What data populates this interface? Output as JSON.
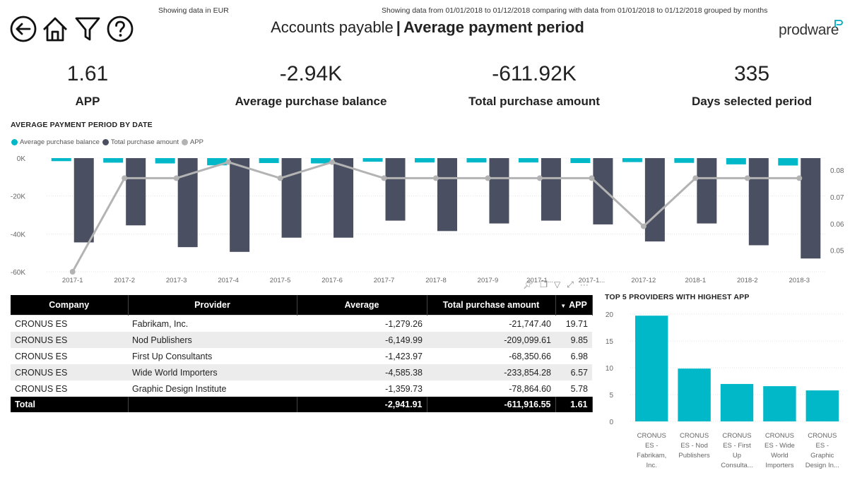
{
  "nav": {
    "back": "back-icon",
    "home": "home-icon",
    "filter": "filter-icon",
    "help": "help-icon"
  },
  "header": {
    "currency_info": "Showing data in EUR",
    "period_info": "Showing data from 01/01/2018 to 01/12/2018 comparing with data from 01/01/2018 to 01/12/2018 grouped by months",
    "title_main": "Accounts payable",
    "title_sep": "|",
    "title_sub": "Average payment period",
    "logo": "prodware"
  },
  "kpis": [
    {
      "value": "1.61",
      "label": "APP"
    },
    {
      "value": "-2.94K",
      "label": "Average purchase balance"
    },
    {
      "value": "-611.92K",
      "label": "Total purchase amount"
    },
    {
      "value": "335",
      "label": "Days selected period"
    }
  ],
  "colors": {
    "teal": "#00b8c8",
    "slate": "#4a5061",
    "grey_line": "#b3b3b3",
    "axis_text": "#666666"
  },
  "main_chart": {
    "title": "AVERAGE PAYMENT PERIOD BY DATE",
    "chart_data": {
      "type": "bar",
      "categories": [
        "2017-1",
        "2017-2",
        "2017-3",
        "2017-4",
        "2017-5",
        "2017-6",
        "2017-7",
        "2017-8",
        "2017-9",
        "2017-10",
        "2017-11",
        "2017-12",
        "2018-1",
        "2018-2",
        "2018-3"
      ],
      "tick_labels": [
        "2017-1",
        "2017-2",
        "2017-3",
        "2017-4",
        "2017-5",
        "2017-6",
        "2017-7",
        "2017-8",
        "2017-9",
        "2017-1...",
        "2017-1...",
        "2017-12",
        "2018-1",
        "2018-2",
        "2018-3"
      ],
      "series": [
        {
          "name": "Average purchase balance",
          "values": [
            -1600,
            -2400,
            -2800,
            -3800,
            -2600,
            -2800,
            -1900,
            -2300,
            -2300,
            -2300,
            -2600,
            -2100,
            -2500,
            -3300,
            -3900
          ],
          "axis": "left"
        },
        {
          "name": "Total purchase amount",
          "values": [
            -44500,
            -35500,
            -47000,
            -49500,
            -42000,
            -42000,
            -33000,
            -38500,
            -34500,
            -33000,
            -35000,
            -44000,
            -34500,
            -46000,
            -53000
          ],
          "axis": "left"
        },
        {
          "name": "APP",
          "values": [
            0.042,
            0.077,
            0.077,
            0.083,
            0.077,
            0.083,
            0.077,
            0.077,
            0.077,
            0.077,
            0.077,
            0.059,
            0.077,
            0.077,
            0.077
          ],
          "axis": "right",
          "type": "line"
        }
      ],
      "y_left_ticks": [
        0,
        -20000,
        -40000,
        -60000
      ],
      "y_left_tick_labels": [
        "0K",
        "-20K",
        "-40K",
        "-60K"
      ],
      "ylim_left": [
        -60000,
        0
      ],
      "y_right_ticks": [
        0.08,
        0.07,
        0.06,
        0.05
      ],
      "y_right_tick_labels": [
        "0.08",
        "0.07",
        "0.06",
        "0.05"
      ],
      "ylim_right": [
        0.042,
        0.0845
      ],
      "legend_position": "top-left",
      "grid": true
    }
  },
  "chart_toolbar": {
    "pin": "pin-icon",
    "copy": "copy-icon",
    "filter": "filter-small-icon",
    "focus": "focus-mode-icon",
    "more": "···"
  },
  "table": {
    "columns": [
      "Company",
      "Provider",
      "Average",
      "Total purchase amount",
      "APP"
    ],
    "sort_indicator": "▼",
    "rows": [
      {
        "company": "CRONUS ES",
        "provider": "Fabrikam, Inc.",
        "average": "-1,279.26",
        "total": "-21,747.40",
        "app": "19.71"
      },
      {
        "company": "CRONUS ES",
        "provider": "Nod Publishers",
        "average": "-6,149.99",
        "total": "-209,099.61",
        "app": "9.85"
      },
      {
        "company": "CRONUS ES",
        "provider": "First Up Consultants",
        "average": "-1,423.97",
        "total": "-68,350.66",
        "app": "6.98"
      },
      {
        "company": "CRONUS ES",
        "provider": "Wide World Importers",
        "average": "-4,585.38",
        "total": "-233,854.28",
        "app": "6.57"
      },
      {
        "company": "CRONUS ES",
        "provider": "Graphic Design Institute",
        "average": "-1,359.73",
        "total": "-78,864.60",
        "app": "5.78"
      }
    ],
    "total": {
      "label": "Total",
      "provider": "",
      "average": "-2,941.91",
      "total": "-611,916.55",
      "app": "1.61"
    }
  },
  "top_chart": {
    "title": "TOP 5 PROVIDERS WITH HIGHEST APP",
    "chart_data": {
      "type": "bar",
      "categories": [
        "CRONUS ES - Fabrikam, Inc.",
        "CRONUS ES - Nod Publishers",
        "CRONUS ES - First Up Consultants",
        "CRONUS ES - Wide World Importers",
        "CRONUS ES - Graphic Design Institute"
      ],
      "category_label_lines": [
        [
          "CRONUS",
          "ES -",
          "Fabrikam,",
          "Inc."
        ],
        [
          "CRONUS",
          "ES - Nod",
          "Publishers"
        ],
        [
          "CRONUS",
          "ES - First",
          "Up",
          "Consulta..."
        ],
        [
          "CRONUS",
          "ES - Wide",
          "World",
          "Importers"
        ],
        [
          "CRONUS",
          "ES -",
          "Graphic",
          "Design In..."
        ]
      ],
      "values": [
        19.71,
        9.85,
        6.98,
        6.57,
        5.78
      ],
      "y_ticks": [
        0,
        5,
        10,
        15,
        20
      ],
      "ylim": [
        0,
        20
      ],
      "grid": true
    }
  }
}
